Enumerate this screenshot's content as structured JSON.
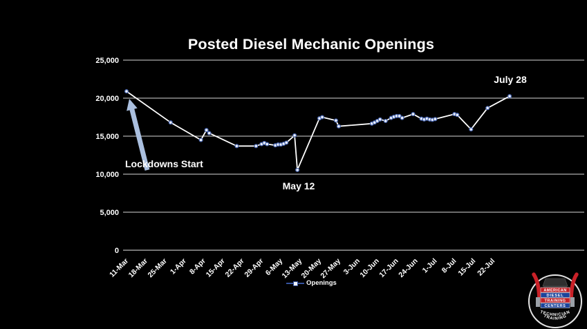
{
  "slide": {
    "background": "#000000"
  },
  "chart_data": {
    "type": "line",
    "title": "Posted Diesel Mechanic Openings",
    "grid": true,
    "y_axis": {
      "min": 0,
      "max": 25000,
      "step": 5000,
      "tick_labels": [
        "0",
        "5,000",
        "10,000",
        "15,000",
        "20,000",
        "25,000"
      ]
    },
    "x_axis": {
      "days_per_tick": 7,
      "tick_labels": [
        "11-Mar",
        "18-Mar",
        "25-Mar",
        "1-Apr",
        "8-Apr",
        "15-Apr",
        "22-Apr",
        "29-Apr",
        "6-May",
        "13-May",
        "20-May",
        "27-May",
        "3-Jun",
        "10-Jun",
        "17-Jun",
        "24-Jun",
        "1-Jul",
        "8-Jul",
        "15-Jul",
        "22-Jul"
      ]
    },
    "legend": {
      "position": "bottom",
      "label": "Openings"
    },
    "series": [
      {
        "name": "Openings",
        "points": [
          {
            "date": "11-Mar",
            "day": 0,
            "value": 20900
          },
          {
            "date": "27-Mar",
            "day": 16,
            "value": 16800
          },
          {
            "date": "7-Apr",
            "day": 27,
            "value": 14500
          },
          {
            "date": "9-Apr",
            "day": 29,
            "value": 15800
          },
          {
            "date": "10-Apr",
            "day": 30,
            "value": 15400
          },
          {
            "date": "20-Apr",
            "day": 40,
            "value": 13700
          },
          {
            "date": "27-Apr",
            "day": 47,
            "value": 13700
          },
          {
            "date": "29-Apr",
            "day": 49,
            "value": 13950
          },
          {
            "date": "30-Apr",
            "day": 50,
            "value": 14100
          },
          {
            "date": "1-May",
            "day": 51,
            "value": 13950
          },
          {
            "date": "4-May",
            "day": 54,
            "value": 13800
          },
          {
            "date": "5-May",
            "day": 55,
            "value": 13900
          },
          {
            "date": "6-May",
            "day": 56,
            "value": 13900
          },
          {
            "date": "7-May",
            "day": 57,
            "value": 14000
          },
          {
            "date": "8-May",
            "day": 58,
            "value": 14150
          },
          {
            "date": "11-May",
            "day": 61,
            "value": 15100
          },
          {
            "date": "12-May",
            "day": 62,
            "value": 10550
          },
          {
            "date": "20-May",
            "day": 70,
            "value": 17350
          },
          {
            "date": "21-May",
            "day": 71,
            "value": 17500
          },
          {
            "date": "26-May",
            "day": 76,
            "value": 17050
          },
          {
            "date": "27-May",
            "day": 77,
            "value": 16300
          },
          {
            "date": "8-Jun",
            "day": 89,
            "value": 16650
          },
          {
            "date": "9-Jun",
            "day": 90,
            "value": 16800
          },
          {
            "date": "10-Jun",
            "day": 91,
            "value": 17000
          },
          {
            "date": "11-Jun",
            "day": 92,
            "value": 17200
          },
          {
            "date": "13-Jun",
            "day": 94,
            "value": 17000
          },
          {
            "date": "15-Jun",
            "day": 96,
            "value": 17400
          },
          {
            "date": "16-Jun",
            "day": 97,
            "value": 17550
          },
          {
            "date": "17-Jun",
            "day": 98,
            "value": 17650
          },
          {
            "date": "18-Jun",
            "day": 99,
            "value": 17650
          },
          {
            "date": "19-Jun",
            "day": 100,
            "value": 17400
          },
          {
            "date": "23-Jun",
            "day": 104,
            "value": 17900
          },
          {
            "date": "26-Jun",
            "day": 107,
            "value": 17300
          },
          {
            "date": "27-Jun",
            "day": 108,
            "value": 17200
          },
          {
            "date": "28-Jun",
            "day": 109,
            "value": 17300
          },
          {
            "date": "29-Jun",
            "day": 110,
            "value": 17200
          },
          {
            "date": "30-Jun",
            "day": 111,
            "value": 17150
          },
          {
            "date": "1-Jul",
            "day": 112,
            "value": 17250
          },
          {
            "date": "8-Jul",
            "day": 119,
            "value": 17900
          },
          {
            "date": "9-Jul",
            "day": 120,
            "value": 17800
          },
          {
            "date": "14-Jul",
            "day": 125,
            "value": 15900
          },
          {
            "date": "20-Jul",
            "day": 131,
            "value": 18700
          },
          {
            "date": "28-Jul",
            "day": 139,
            "value": 20250
          }
        ]
      }
    ],
    "annotations": {
      "lockdowns": {
        "text": "Lockdowns Start"
      },
      "may12": {
        "text": "May 12"
      },
      "july28": {
        "text": "July 28"
      }
    },
    "colors": {
      "background": "#000000",
      "text": "#ffffff",
      "line": "#ffffff",
      "marker_fill": "#eef2fb",
      "marker_stroke": "#4a67b0",
      "grid": "#d9d9d9",
      "arrow": "#aabfdf",
      "legend_line": "#35539f"
    }
  },
  "logo": {
    "line1": "AMERICAN",
    "line2": "DIESEL",
    "line3": "TRAINING",
    "line4": "CENTERS",
    "tagline_line1": "TECHNICIAN",
    "tagline_line2": "TRAINING"
  }
}
